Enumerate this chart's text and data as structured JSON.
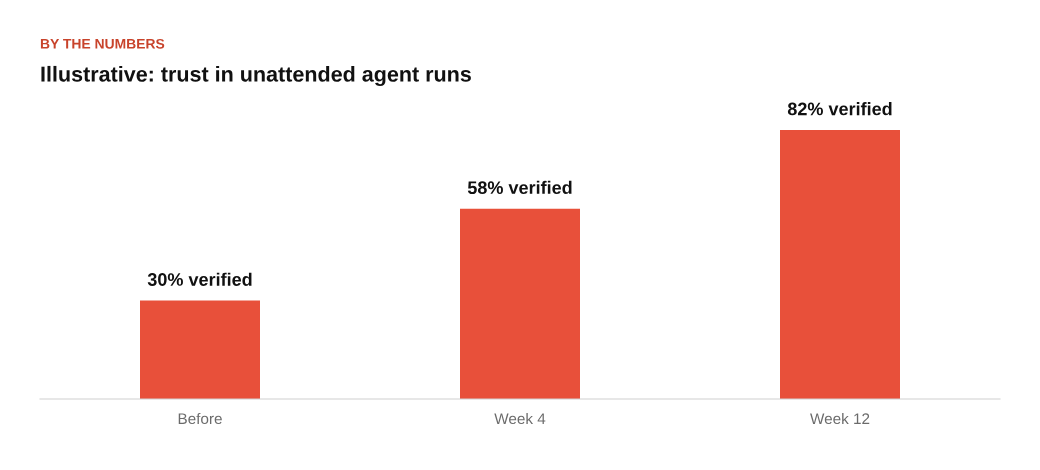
{
  "chart_data": {
    "type": "bar",
    "subtitle": "BY THE NUMBERS",
    "title": "Illustrative: trust in unattended agent runs",
    "categories": [
      "Before",
      "Week 4",
      "Week 12"
    ],
    "values": [
      30,
      58,
      82
    ],
    "value_labels": [
      "30% verified",
      "58% verified",
      "82% verified"
    ],
    "color": "#e8503a",
    "grid": false,
    "legend": false
  }
}
